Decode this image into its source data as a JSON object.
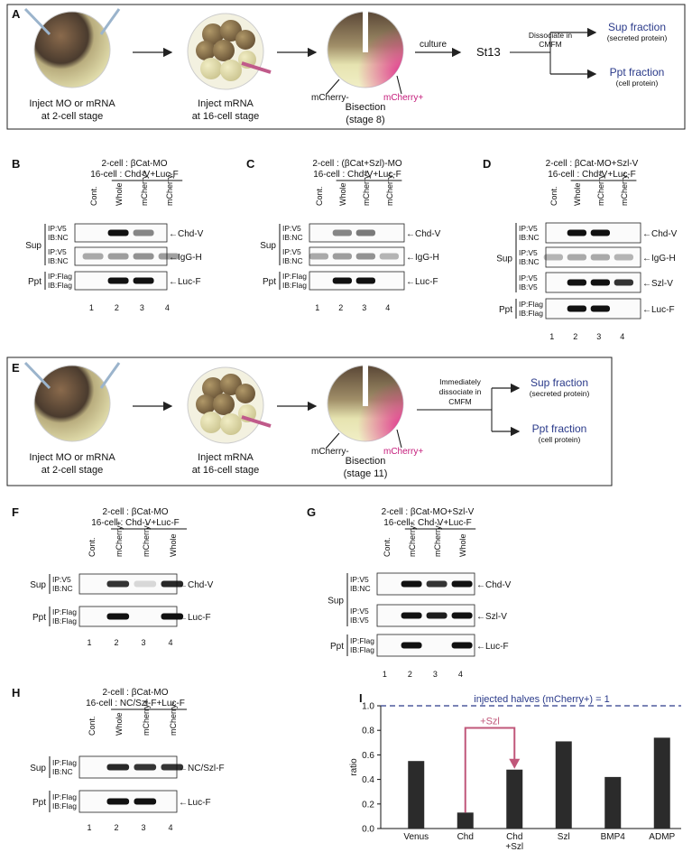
{
  "panels": {
    "A": {
      "letter": "A",
      "step1_line1": "Inject MO or mRNA",
      "step1_line2": "at 2-cell stage",
      "step2_line1": "Inject mRNA",
      "step2_line2": "at 16-cell stage",
      "step3_line1": "Bisection",
      "step3_line2": "(stage 8)",
      "mcherry_minus": "mCherry-",
      "mcherry_plus": "mCherry+",
      "culture": "culture",
      "stage": "St13",
      "dissociate_line1": "Dissociate in",
      "dissociate_line2": "CMFM",
      "sup_title": "Sup fraction",
      "sup_sub": "(secreted protein)",
      "ppt_title": "Ppt fraction",
      "ppt_sub": "(cell protein)"
    },
    "E": {
      "letter": "E",
      "step1_line1": "Inject MO or mRNA",
      "step1_line2": "at 2-cell stage",
      "step2_line1": "Inject mRNA",
      "step2_line2": "at 16-cell stage",
      "step3_line1": "Bisection",
      "step3_line2": "(stage 11)",
      "mcherry_minus": "mCherry-",
      "mcherry_plus": "mCherry+",
      "dissociate_line1": "Immediately",
      "dissociate_line2": "dissociate in",
      "dissociate_line3": "CMFM",
      "sup_title": "Sup fraction",
      "sup_sub": "(secreted protein)",
      "ppt_title": "Ppt fraction",
      "ppt_sub": "(cell protein)"
    },
    "B": {
      "letter": "B",
      "header1": "2-cell : βCat-MO",
      "header2": "16-cell : Chd-V+Luc-F",
      "lanes": [
        "Cont.",
        "Whole",
        "mCherry+",
        "mCherry-"
      ],
      "numbers": [
        "1",
        "2",
        "3",
        "4"
      ],
      "group_sup": "Sup",
      "group_ppt": "Ppt",
      "rows": [
        {
          "ip": "IP:V5",
          "ib": "IB:NC",
          "band": "←Chd-V"
        },
        {
          "ip": "IP:V5",
          "ib": "IB:NC",
          "band": "←IgG-H"
        },
        {
          "ip": "IP:Flag",
          "ib": "IB:Flag",
          "band": "←Luc-F"
        }
      ]
    },
    "C": {
      "letter": "C",
      "header1": "2-cell : (βCat+Szl)-MO",
      "header2": "16-cell : Chd-V+Luc-F",
      "lanes": [
        "Cont.",
        "Whole",
        "mCherry+",
        "mCherry-"
      ],
      "numbers": [
        "1",
        "2",
        "3",
        "4"
      ],
      "group_sup": "Sup",
      "group_ppt": "Ppt",
      "rows": [
        {
          "ip": "IP:V5",
          "ib": "IB:NC",
          "band": "←Chd-V"
        },
        {
          "ip": "IP:V5",
          "ib": "IB:NC",
          "band": "←IgG-H"
        },
        {
          "ip": "IP:Flag",
          "ib": "IB:Flag",
          "band": "←Luc-F"
        }
      ]
    },
    "D": {
      "letter": "D",
      "header1": "2-cell : βCat-MO+Szl-V",
      "header2": "16-cell : Chd-V+Luc-F",
      "lanes": [
        "Cont.",
        "Whole",
        "mCherry+",
        "mCherry-"
      ],
      "numbers": [
        "1",
        "2",
        "3",
        "4"
      ],
      "group_sup": "Sup",
      "group_ppt": "Ppt",
      "rows": [
        {
          "ip": "IP:V5",
          "ib": "IB:NC",
          "band": "←Chd-V"
        },
        {
          "ip": "IP:V5",
          "ib": "IB:NC",
          "band": "←IgG-H"
        },
        {
          "ip": "IP:V5",
          "ib": "IB:V5",
          "band": "←Szl-V"
        },
        {
          "ip": "IP:Flag",
          "ib": "IB:Flag",
          "band": "←Luc-F"
        }
      ]
    },
    "F": {
      "letter": "F",
      "header1": "2-cell : βCat-MO",
      "header2": "16-cell : Chd-V+Luc-F",
      "lanes": [
        "Cont.",
        "mCherry+",
        "mCherry-",
        "Whole"
      ],
      "numbers": [
        "1",
        "2",
        "3",
        "4"
      ],
      "group_sup": "Sup",
      "group_ppt": "Ppt",
      "rows": [
        {
          "ip": "IP:V5",
          "ib": "IB:NC",
          "band": "←Chd-V"
        },
        {
          "ip": "IP:Flag",
          "ib": "IB:Flag",
          "band": "←Luc-F"
        }
      ]
    },
    "G": {
      "letter": "G",
      "header1": "2-cell : βCat-MO+Szl-V",
      "header2": "16-cell : Chd-V+Luc-F",
      "lanes": [
        "Cont.",
        "mCherry+",
        "mCherry-",
        "Whole"
      ],
      "numbers": [
        "1",
        "2",
        "3",
        "4"
      ],
      "group_sup": "Sup",
      "group_ppt": "Ppt",
      "rows": [
        {
          "ip": "IP:V5",
          "ib": "IB:NC",
          "band": "←Chd-V"
        },
        {
          "ip": "IP:V5",
          "ib": "IB:V5",
          "band": "←Szl-V"
        },
        {
          "ip": "IP:Flag",
          "ib": "IB:Flag",
          "band": "←Luc-F"
        }
      ]
    },
    "H": {
      "letter": "H",
      "header1": "2-cell : βCat-MO",
      "header2": "16-cell : NC/Szl-F+Luc-F",
      "lanes": [
        "Cont.",
        "Whole",
        "mCherry+",
        "mCherry-"
      ],
      "numbers": [
        "1",
        "2",
        "3",
        "4"
      ],
      "group_sup": "Sup",
      "group_ppt": "Ppt",
      "rows": [
        {
          "ip": "IP:Flag",
          "ib": "IB:NC",
          "band": "←NC/Szl-F"
        },
        {
          "ip": "IP:Flag",
          "ib": "IB:Flag",
          "band": "←Luc-F"
        }
      ]
    },
    "I": {
      "letter": "I",
      "szl_arrow_label": "+Szl"
    }
  },
  "chart_data": {
    "type": "bar",
    "categories": [
      "Venus",
      "Chd",
      "Chd\n+Szl",
      "Szl",
      "BMP4",
      "ADMP"
    ],
    "category_lines": [
      [
        "Venus"
      ],
      [
        "Chd"
      ],
      [
        "Chd",
        "+Szl"
      ],
      [
        "Szl"
      ],
      [
        "BMP4"
      ],
      [
        "ADMP"
      ]
    ],
    "values": [
      0.55,
      0.13,
      0.48,
      0.71,
      0.42,
      0.74
    ],
    "ylabel": "ratio",
    "ylim": [
      0,
      1.0
    ],
    "yticks": [
      "0.0",
      "0.2",
      "0.4",
      "0.6",
      "0.8",
      "1.0"
    ],
    "reference_line": {
      "value": 1.0,
      "label": "injected halves (mCherry+) = 1"
    },
    "bar_color": "#2b2b2b",
    "annotation_color": "#c0577a"
  }
}
